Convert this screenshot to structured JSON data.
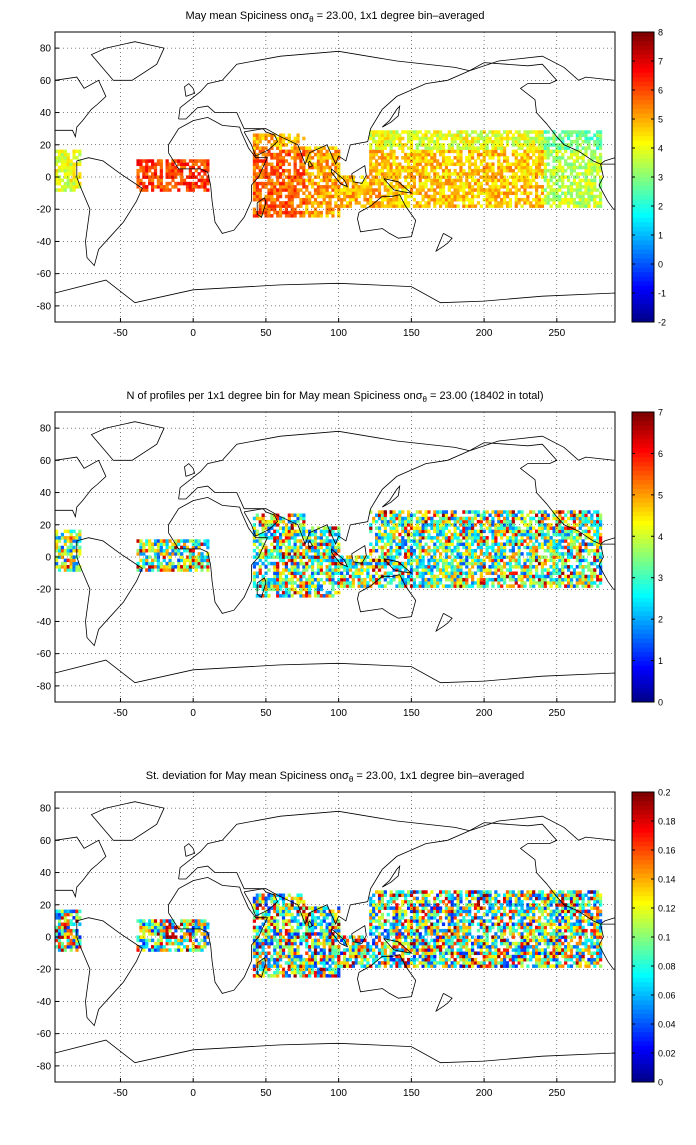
{
  "panels": [
    {
      "title": "May mean Spiciness on σ₀ = 23.00, 1x1 degree bin–averaged",
      "title_main": "May mean Spiciness on",
      "title_sigma": "σ",
      "title_sub": "θ",
      "title_tail": " = 23.00, 1x1 degree bin–averaged",
      "colorbar": {
        "min": -2,
        "max": 8,
        "ticks": [
          "8",
          "7",
          "6",
          "5",
          "4",
          "3",
          "2",
          "1",
          "0",
          "-1",
          "-2"
        ]
      },
      "field": "mean",
      "data_shading": "jet colormap, values mostly 3–7 over the tropical Indian and Pacific Oceans"
    },
    {
      "title_main": "N of profiles per 1x1 degree bin for May mean Spiciness on",
      "title_sigma": "σ",
      "title_sub": "θ",
      "title_tail": " = 23.00 (18402 in total)",
      "colorbar": {
        "min": 0,
        "max": 7,
        "ticks": [
          "7",
          "6",
          "5",
          "4",
          "3",
          "2",
          "1",
          "0"
        ]
      },
      "field": "count"
    },
    {
      "title_main": "St. deviation for May mean Spiciness on",
      "title_sigma": "σ",
      "title_sub": "θ",
      "title_tail": " = 23.00, 1x1 degree bin–averaged",
      "colorbar": {
        "min": 0,
        "max": 0.2,
        "ticks": [
          "0.2",
          "0.18",
          "0.16",
          "0.14",
          "0.12",
          "0.1",
          "0.08",
          "0.06",
          "0.04",
          "0.02",
          "0"
        ]
      },
      "field": "std"
    }
  ],
  "axes": {
    "x_ticks": [
      "-50",
      "0",
      "50",
      "100",
      "150",
      "200",
      "250"
    ],
    "y_ticks": [
      "80",
      "60",
      "40",
      "20",
      "0",
      "-20",
      "-40",
      "-60",
      "-80"
    ],
    "xlim": [
      -95,
      290
    ],
    "ylim": [
      -90,
      90
    ],
    "grid": true
  }
}
